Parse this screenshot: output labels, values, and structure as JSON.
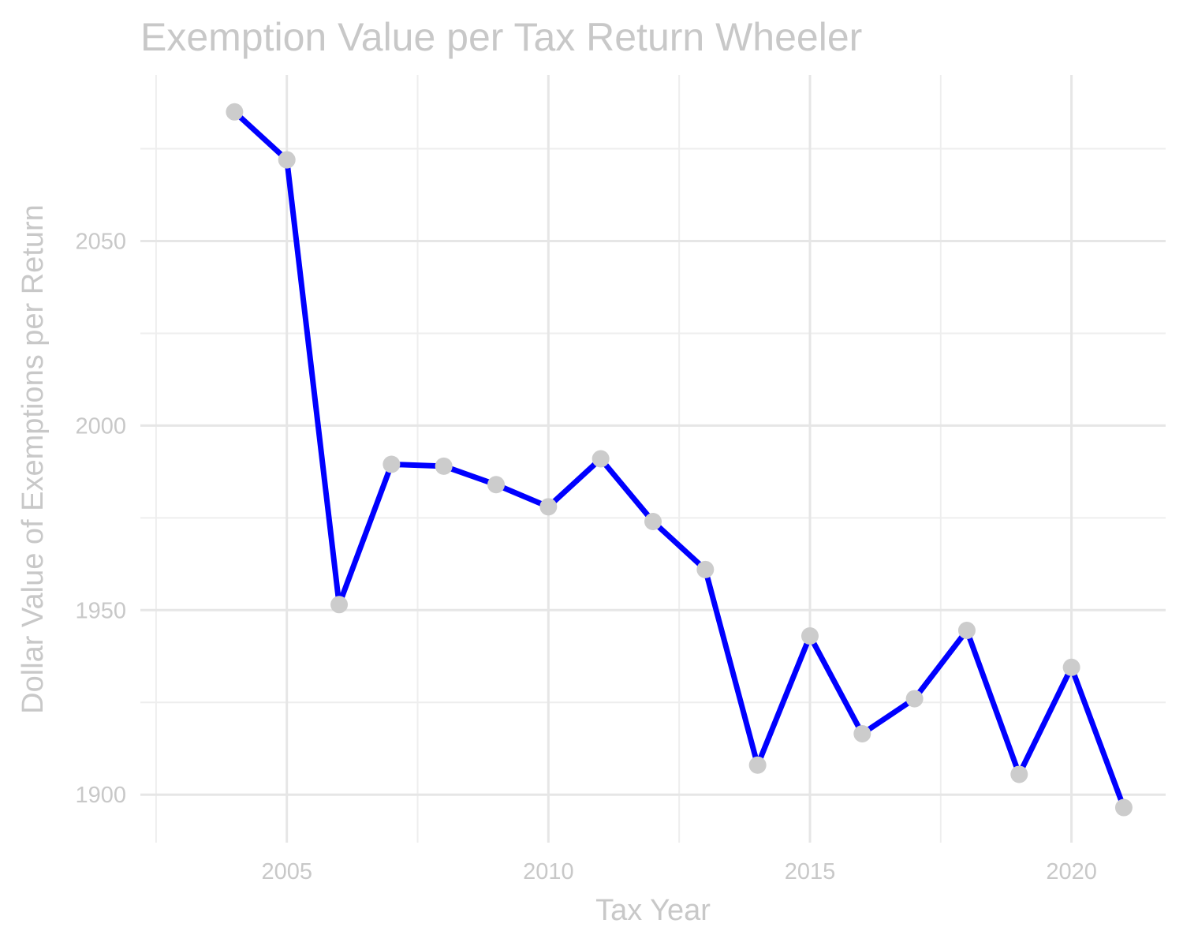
{
  "chart_data": {
    "type": "line",
    "title": "Exemption Value per Tax Return Wheeler",
    "xlabel": "Tax Year",
    "ylabel": "Dollar Value of Exemptions per Return",
    "x": [
      2004,
      2005,
      2006,
      2007,
      2008,
      2009,
      2010,
      2011,
      2012,
      2013,
      2014,
      2015,
      2016,
      2017,
      2018,
      2019,
      2020,
      2021
    ],
    "values": [
      2085,
      2072,
      1951.5,
      1989.5,
      1989,
      1984,
      1978,
      1991,
      1974,
      1961,
      1908,
      1943,
      1916.5,
      1926,
      1944.5,
      1905.5,
      1934.5,
      1896.5
    ],
    "xlim": [
      2002.2,
      2021.8
    ],
    "ylim": [
      1887,
      2095
    ],
    "x_ticks": [
      2005,
      2010,
      2015,
      2020
    ],
    "x_tick_labels": [
      "2005",
      "2010",
      "2015",
      "2020"
    ],
    "y_ticks": [
      1900,
      1950,
      2000,
      2050
    ],
    "y_tick_labels": [
      "1900",
      "1950",
      "2000",
      "2050"
    ],
    "grid": true,
    "legend": "none",
    "colors": {
      "line": "#0000ff",
      "points": "#cccccc",
      "text": "#c8c8c8",
      "grid": "#e6e6e6"
    }
  }
}
